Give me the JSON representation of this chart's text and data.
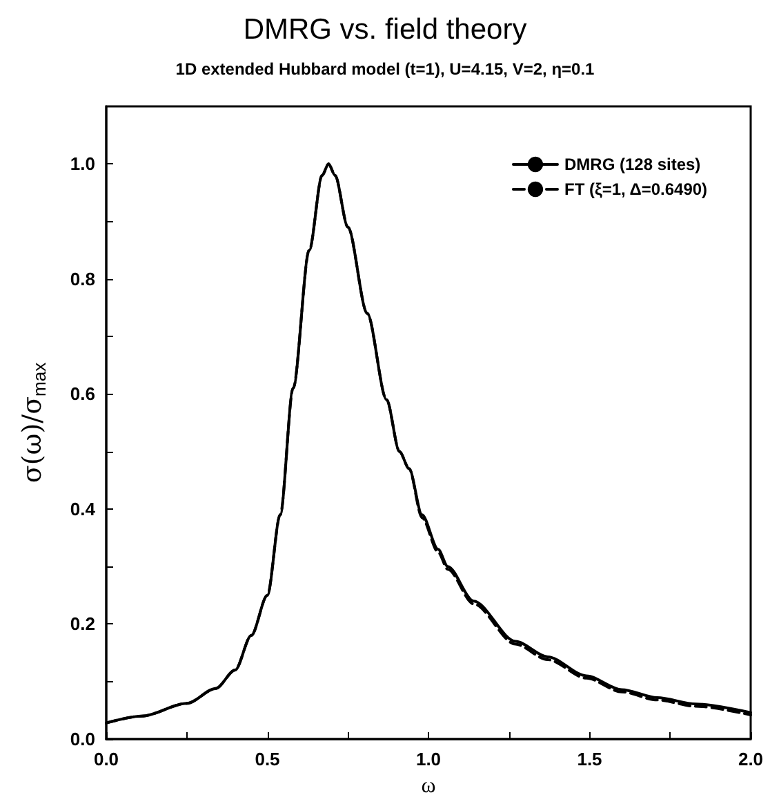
{
  "chart_data": {
    "type": "line",
    "title": "DMRG vs. field theory",
    "subtitle": "1D extended Hubbard model (t=1), U=4.15, V=2, η=0.1",
    "xlabel": "ω",
    "ylabel": "σ(ω)/σ$_{max}$",
    "xlim": [
      0,
      2
    ],
    "ylim": [
      0,
      1.1
    ],
    "xticks": [
      {
        "value": 0,
        "label": "0.0"
      },
      {
        "value": 0.25,
        "label": null
      },
      {
        "value": 0.5,
        "label": "0.5"
      },
      {
        "value": 0.75,
        "label": null
      },
      {
        "value": 1,
        "label": "1.0"
      },
      {
        "value": 1.25,
        "label": null
      },
      {
        "value": 1.5,
        "label": "1.5"
      },
      {
        "value": 1.75,
        "label": null
      },
      {
        "value": 2,
        "label": "2.0"
      }
    ],
    "yticks": [
      {
        "value": 0,
        "label": "0.0"
      },
      {
        "value": 0.1,
        "label": null
      },
      {
        "value": 0.2,
        "label": "0.2"
      },
      {
        "value": 0.3,
        "label": null
      },
      {
        "value": 0.4,
        "label": "0.4"
      },
      {
        "value": 0.5,
        "label": null
      },
      {
        "value": 0.6,
        "label": "0.6"
      },
      {
        "value": 0.7,
        "label": null
      },
      {
        "value": 0.8,
        "label": "0.8"
      },
      {
        "value": 0.9,
        "label": null
      },
      {
        "value": 1,
        "label": "1.0"
      }
    ],
    "grid": false,
    "legend": "top right",
    "marker": "none",
    "series": [
      {
        "name": "DMRG (128 sites)",
        "color": "#000000",
        "line_style": "solid",
        "x": [
          0,
          0.11,
          0.25,
          0.34,
          0.4,
          0.45,
          0.5,
          0.54,
          0.58,
          0.63,
          0.67,
          0.69,
          0.71,
          0.75,
          0.81,
          0.87,
          0.91,
          0.94,
          0.98,
          1.03,
          1.06,
          1.14,
          1.27,
          1.37,
          1.49,
          1.6,
          1.71,
          1.83,
          2.0
        ],
        "values": [
          0.028,
          0.04,
          0.062,
          0.088,
          0.12,
          0.18,
          0.25,
          0.39,
          0.61,
          0.85,
          0.98,
          1.0,
          0.98,
          0.89,
          0.74,
          0.59,
          0.5,
          0.47,
          0.39,
          0.33,
          0.3,
          0.24,
          0.17,
          0.143,
          0.11,
          0.086,
          0.072,
          0.061,
          0.046
        ]
      },
      {
        "name": "FT (ξ=1, Δ=0.6490)",
        "color": "#000000",
        "line_style": "dashed",
        "x": [
          0,
          0.11,
          0.25,
          0.34,
          0.4,
          0.45,
          0.5,
          0.54,
          0.58,
          0.63,
          0.67,
          0.69,
          0.71,
          0.75,
          0.81,
          0.87,
          0.91,
          0.94,
          0.98,
          1.03,
          1.06,
          1.14,
          1.27,
          1.37,
          1.49,
          1.6,
          1.71,
          1.83,
          2.0
        ],
        "values": [
          0.028,
          0.04,
          0.062,
          0.088,
          0.12,
          0.18,
          0.25,
          0.39,
          0.61,
          0.85,
          0.98,
          1.0,
          0.98,
          0.89,
          0.74,
          0.59,
          0.5,
          0.47,
          0.385,
          0.325,
          0.295,
          0.235,
          0.165,
          0.138,
          0.106,
          0.082,
          0.068,
          0.057,
          0.042
        ]
      }
    ]
  }
}
